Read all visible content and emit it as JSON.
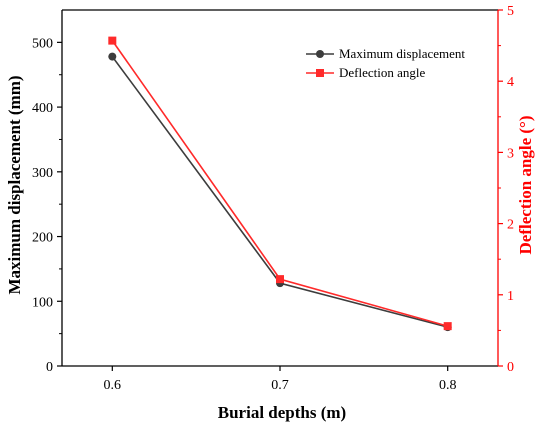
{
  "chart_data": {
    "type": "line",
    "x": [
      0.6,
      0.7,
      0.8
    ],
    "x_tick_labels": [
      "0.6",
      "0.7",
      "0.8"
    ],
    "xlabel": "Burial depths (m)",
    "xlim": [
      0.57,
      0.83
    ],
    "y_left": {
      "label": "Maximum displacement (mm)",
      "ylim": [
        0,
        550
      ],
      "ticks": [
        0,
        100,
        200,
        300,
        400,
        500
      ],
      "tick_labels": [
        "0",
        "100",
        "200",
        "300",
        "400",
        "500"
      ],
      "color": "#000000"
    },
    "y_right": {
      "label": "Deflection angle (°)",
      "ylim": [
        0,
        5
      ],
      "ticks": [
        0,
        1,
        2,
        3,
        4,
        5
      ],
      "tick_labels": [
        "0",
        "1",
        "2",
        "3",
        "4",
        "5"
      ],
      "color": "#ff0000"
    },
    "series": [
      {
        "name": "Maximum displacement",
        "axis": "left",
        "values": [
          478,
          128,
          60
        ],
        "color": "#3d3d3d",
        "marker": "circle"
      },
      {
        "name": "Deflection angle",
        "axis": "right",
        "values": [
          4.57,
          1.22,
          0.56
        ],
        "color": "#ff2a2a",
        "marker": "square"
      }
    ],
    "legend_position": "top-right",
    "grid": false
  }
}
